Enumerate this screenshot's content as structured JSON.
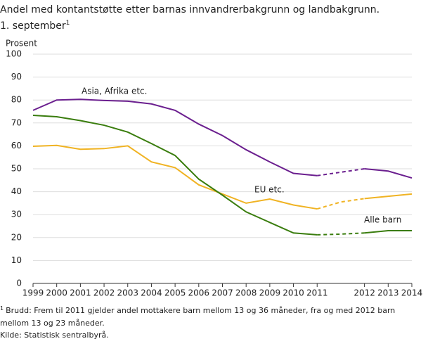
{
  "chart_data": {
    "type": "line",
    "title": [
      "Andel med kontantstøtte etter barnas innvandrerbakgrunn og landbakgrunn.",
      "1. september"
    ],
    "title_note_mark": "1",
    "y_label": "Prosent",
    "categories": [
      "1999",
      "2000",
      "2001",
      "2002",
      "2003",
      "2004",
      "2005",
      "2006",
      "2007",
      "2008",
      "2009",
      "2010",
      "2011",
      null,
      "2012",
      "2013",
      "2014"
    ],
    "dashed_segment": {
      "from": 12,
      "to": 14
    },
    "ylim": [
      0,
      100
    ],
    "yticks": [
      0,
      10,
      20,
      30,
      40,
      50,
      60,
      70,
      80,
      90,
      100
    ],
    "grid": true,
    "series": [
      {
        "name": "Asia, Afrika etc.",
        "color": "#6b1f8f",
        "values": [
          75.5,
          80,
          80.3,
          79.8,
          79.5,
          78.3,
          75.5,
          69.5,
          64.5,
          58.3,
          53,
          48,
          47,
          48.5,
          50,
          49,
          46
        ]
      },
      {
        "name": "EU etc.",
        "color": "#f0b323",
        "values": [
          59.8,
          60.2,
          58.5,
          58.8,
          60,
          53,
          50.5,
          43,
          39,
          35,
          36.8,
          34.2,
          32.5,
          35.5,
          37,
          38,
          39
        ]
      },
      {
        "name": "Alle barn",
        "color": "#3a7d0e",
        "values": [
          73.3,
          72.7,
          71,
          69,
          66,
          61,
          55.8,
          45.5,
          38.5,
          31.2,
          26.6,
          22,
          21.2,
          21.5,
          22,
          23,
          23
        ]
      }
    ],
    "footnote": {
      "mark": "1",
      "lines": [
        "Brudd: Frem til 2011 gjelder andel mottakere barn mellom 13 og 36 måneder, fra og med 2012 barn",
        "mellom 13 og 23 måneder."
      ]
    },
    "source": "Kilde: Statistisk sentralbyrå."
  }
}
